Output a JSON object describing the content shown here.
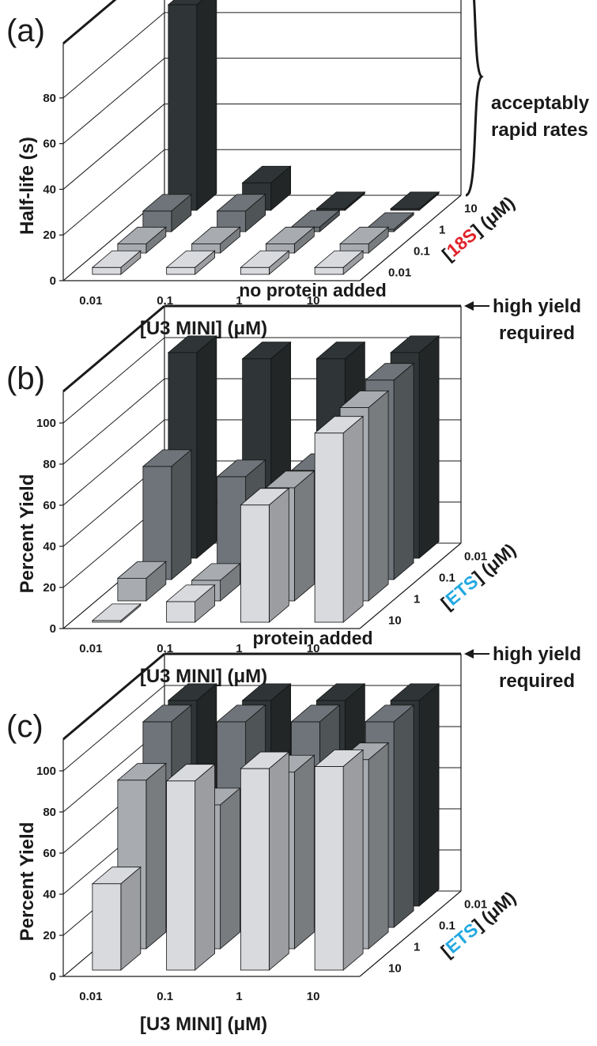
{
  "colors": {
    "series": [
      "#d8dade",
      "#a8acb0",
      "#6e7479",
      "#2f3536"
    ],
    "highlight_18s": "#e0242a",
    "highlight_ets": "#22a8e0",
    "axis": "#1a1a1a",
    "grid": "#1a1a1a"
  },
  "chart_data": [
    {
      "type": "bar3d",
      "panel_label": "(a)",
      "title": "protein added",
      "ylabel": "Half-life (s)",
      "ylim": [
        0,
        90
      ],
      "yticks": [
        "0",
        "20",
        "40",
        "60",
        "80"
      ],
      "categories": [
        "0.01",
        "0.1",
        "1",
        "10"
      ],
      "xlabel": "[U3 MINI] (μM)",
      "depth_label_open": "[",
      "depth_label_highlight": "18S",
      "depth_label_close": "] (μM)",
      "depth_highlight_key": "highlight_18s",
      "depth_ticks": [
        "10",
        "1",
        "0.1",
        "0.01"
      ],
      "annotation_lines": [
        "acceptably",
        "rapid rates"
      ],
      "annotation_style": "brace",
      "series": [
        {
          "values": [
            3,
            3,
            3,
            3
          ]
        },
        {
          "values": [
            4,
            4,
            4,
            4
          ]
        },
        {
          "values": [
            9,
            9,
            2,
            1
          ]
        },
        {
          "values": [
            90,
            12,
            0,
            0
          ]
        }
      ]
    },
    {
      "type": "bar3d",
      "panel_label": "(b)",
      "title": "no protein added",
      "ylabel": "Percent Yield",
      "ylim": [
        0,
        100
      ],
      "yticks": [
        "0",
        "20",
        "40",
        "60",
        "80",
        "100"
      ],
      "categories": [
        "0.01",
        "0.1",
        "1",
        "10"
      ],
      "xlabel": "[U3 MINI] (μM)",
      "depth_label_open": "[",
      "depth_label_highlight": "ETS",
      "depth_label_close": "] (μM)",
      "depth_highlight_key": "highlight_ets",
      "depth_ticks": [
        "0.01",
        "0.1",
        "1",
        "10"
      ],
      "annotation_lines": [
        "high yield",
        "required"
      ],
      "annotation_style": "arrow",
      "series": [
        {
          "values": [
            0,
            10,
            57,
            92
          ]
        },
        {
          "values": [
            11,
            10,
            55,
            94
          ]
        },
        {
          "values": [
            55,
            50,
            53,
            97
          ]
        },
        {
          "values": [
            100,
            97,
            97,
            100
          ]
        }
      ]
    },
    {
      "type": "bar3d",
      "panel_label": "(c)",
      "title": "protein added",
      "ylabel": "Percent Yield",
      "ylim": [
        0,
        100
      ],
      "yticks": [
        "0",
        "20",
        "40",
        "60",
        "80",
        "100"
      ],
      "categories": [
        "0.01",
        "0.1",
        "1",
        "10"
      ],
      "xlabel": "[U3 MINI] (μM)",
      "depth_label_open": "[",
      "depth_label_highlight": "ETS",
      "depth_label_close": "] (μM)",
      "depth_highlight_key": "highlight_ets",
      "depth_ticks": [
        "0.01",
        "0.1",
        "1",
        "10"
      ],
      "annotation_lines": [
        "high yield",
        "required"
      ],
      "annotation_style": "arrow",
      "series": [
        {
          "values": [
            42,
            92,
            98,
            99
          ]
        },
        {
          "values": [
            82,
            70,
            86,
            92
          ]
        },
        {
          "values": [
            100,
            100,
            100,
            100
          ]
        },
        {
          "values": [
            100,
            100,
            100,
            100
          ]
        }
      ]
    }
  ]
}
